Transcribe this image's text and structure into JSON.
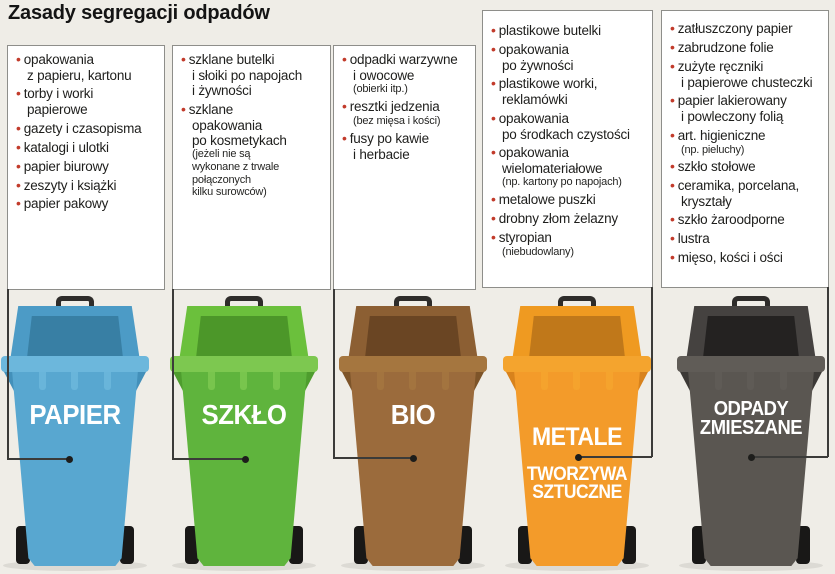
{
  "title": "Zasady segregacji odpadów",
  "list_bullet": "•",
  "colors": {
    "background": "#EFEDE7",
    "box_background": "#FFFFFF",
    "box_border": "#8E8E8A",
    "bullet": "#C23B2B",
    "text": "#1E1E1C",
    "connector": "#3B3B39",
    "bin_label_text": "#FFFFFF"
  },
  "columns": [
    {
      "id": "papier",
      "items": [
        {
          "text": "opakowania\nz papieru, kartonu"
        },
        {
          "text": "torby i worki\npapierowe"
        },
        {
          "text": "gazety i czasopisma"
        },
        {
          "text": "katalogi i ulotki"
        },
        {
          "text": "papier biurowy"
        },
        {
          "text": "zeszyty i książki"
        },
        {
          "text": "papier pakowy"
        }
      ],
      "bin": {
        "label": "PAPIER",
        "colors": {
          "body": "#58A7D0",
          "lid": "#4C9BC6",
          "inner": "#387FA4",
          "rim": "#6CB7DC",
          "shade": "#4390BA"
        }
      }
    },
    {
      "id": "szklo",
      "items": [
        {
          "text": "szklane butelki\ni słoiki po napojach\ni żywności"
        },
        {
          "text": "szklane\nopakowania\npo kosmetykach",
          "note": "(jeżeli nie są\nwykonane z trwale\npołączonych\nkilku surowców)"
        }
      ],
      "bin": {
        "label": "SZKŁO",
        "colors": {
          "body": "#5FB43D",
          "lid": "#6BC03C",
          "inner": "#4C9729",
          "rim": "#7DC850",
          "shade": "#4E9D2E"
        }
      }
    },
    {
      "id": "bio",
      "items": [
        {
          "text": "odpadki warzywne\ni owocowe",
          "note": "(obierki itp.)"
        },
        {
          "text": "resztki jedzenia",
          "note": "(bez mięsa i kości)"
        },
        {
          "text": "fusy po kawie\ni herbacie"
        }
      ],
      "bin": {
        "label": "BIO",
        "colors": {
          "body": "#9B6B3C",
          "lid": "#8C5F33",
          "inner": "#6A4523",
          "rim": "#A5763F",
          "shade": "#7D5429"
        }
      }
    },
    {
      "id": "metale-tworzywa",
      "items": [
        {
          "text": "plastikowe butelki"
        },
        {
          "text": "opakowania\npo żywności"
        },
        {
          "text": "plastikowe worki,\nreklamówki"
        },
        {
          "text": "opakowania\npo środkach czystości"
        },
        {
          "text": "opakowania\nwielomateriałowe",
          "note": "(np. kartony po napojach)"
        },
        {
          "text": "metalowe puszki"
        },
        {
          "text": "drobny złom żelazny"
        },
        {
          "text": "styropian",
          "note": "(niebudowlany)"
        }
      ],
      "bin": {
        "label": "METALE",
        "label2": "TWORZYWA\nSZTUCZNE",
        "colors": {
          "body": "#F39B2A",
          "lid": "#EF9A21",
          "inner": "#C0781A",
          "rim": "#F4A42E",
          "shade": "#D8821C"
        }
      }
    },
    {
      "id": "odpady-zmieszane",
      "items": [
        {
          "text": "zatłuszczony papier"
        },
        {
          "text": "zabrudzone folie"
        },
        {
          "text": "zużyte ręczniki\ni papierowe chusteczki"
        },
        {
          "text": "papier lakierowany\ni powleczony folią"
        },
        {
          "text": "art. higieniczne",
          "note": "(np. pieluchy)"
        },
        {
          "text": "szkło stołowe"
        },
        {
          "text": "ceramika, porcelana,\nkryształy"
        },
        {
          "text": "szkło żaroodporne"
        },
        {
          "text": "lustra"
        },
        {
          "text": "mięso, kości i ości"
        }
      ],
      "bin": {
        "label": "ODPADY\nZMIESZANE",
        "colors": {
          "body": "#5A5651",
          "lid": "#454240",
          "inner": "#242221",
          "rim": "#605C57",
          "shade": "#3C3936"
        }
      }
    }
  ]
}
